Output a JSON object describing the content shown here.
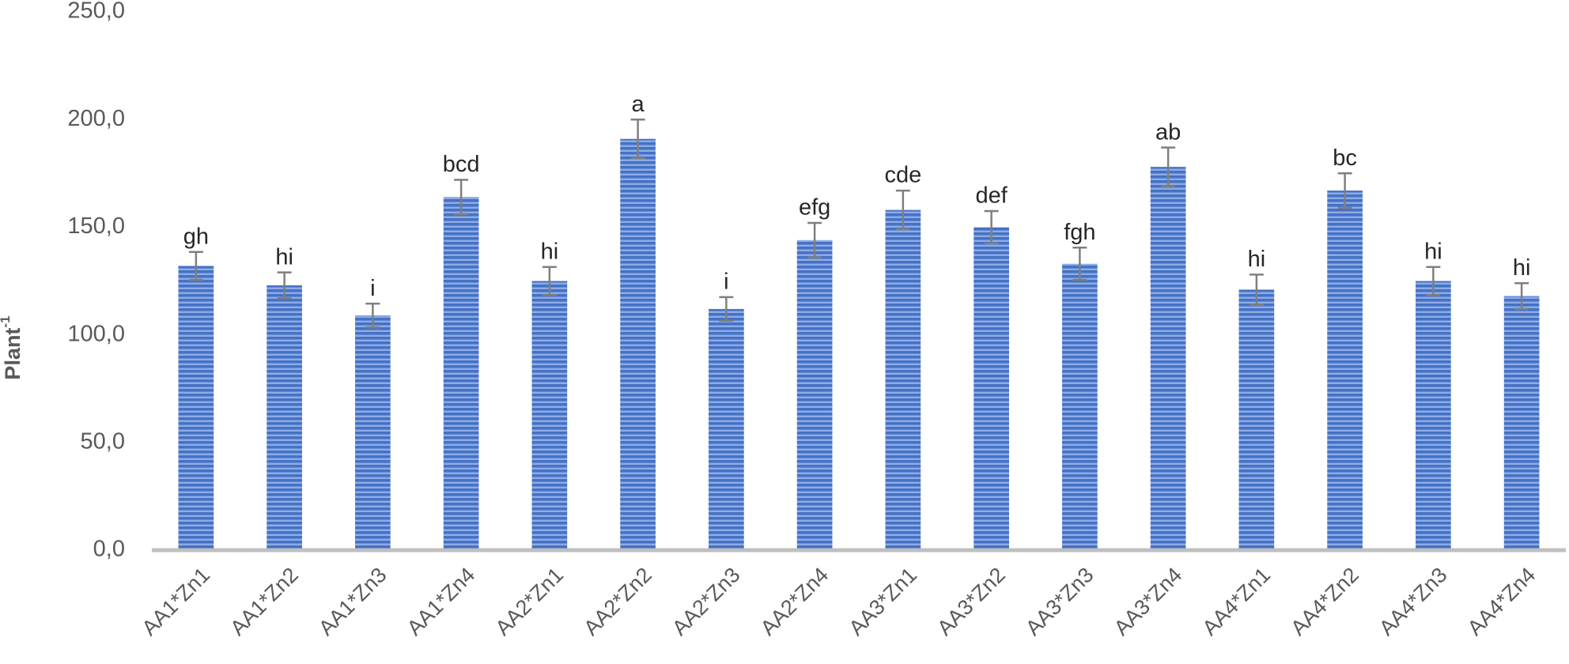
{
  "chart_data": {
    "type": "bar",
    "y_label": {
      "text": "Plant",
      "superscript": "-1"
    },
    "categories": [
      "AA1*Zn1",
      "AA1*Zn2",
      "AA1*Zn3",
      "AA1*Zn4",
      "AA2*Zn1",
      "AA2*Zn2",
      "AA2*Zn3",
      "AA2*Zn4",
      "AA3*Zn1",
      "AA3*Zn2",
      "AA3*Zn3",
      "AA3*Zn4",
      "AA4*Zn1",
      "AA4*Zn2",
      "AA4*Zn3",
      "AA4*Zn4"
    ],
    "values": [
      132,
      123,
      109,
      164,
      125,
      191,
      112,
      144,
      158,
      150,
      133,
      178,
      121,
      167,
      125,
      118
    ],
    "errors": [
      6.5,
      6,
      5.5,
      8,
      6.5,
      9,
      5.5,
      8,
      9,
      7.5,
      7.5,
      9,
      7,
      8,
      6.5,
      6
    ],
    "significance_letters": [
      "gh",
      "hi",
      "i",
      "bcd",
      "hi",
      "a",
      "i",
      "efg",
      "cde",
      "def",
      "fgh",
      "ab",
      "hi",
      "bc",
      "hi",
      "hi"
    ],
    "color": "#4472c4",
    "ylim": [
      0,
      250
    ],
    "yticks": [
      {
        "value": 0,
        "label": "0,0"
      },
      {
        "value": 50,
        "label": "50,0"
      },
      {
        "value": 100,
        "label": "100,0"
      },
      {
        "value": 150,
        "label": "150,0"
      },
      {
        "value": 200,
        "label": "200,0"
      },
      {
        "value": 250,
        "label": "250,0"
      }
    ],
    "grid": false
  }
}
